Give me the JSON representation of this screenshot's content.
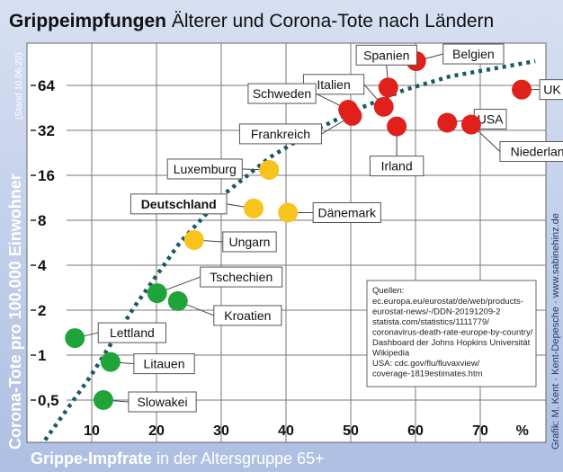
{
  "chart_data": {
    "type": "scatter",
    "title_bold": "Grippeimpfungen",
    "title_rest": " Älterer und Corona-Tote nach Ländern",
    "xlabel_bold": "Grippe-Impfrate",
    "xlabel_rest": " in der Altersgruppe 65+",
    "ylabel": "Corona-Tote pro 100.000 Einwohner",
    "ylabel_note": "(Stand 10.06.20)",
    "credit": "Grafik: M. Kent · Kent-Depesche · www.sabinehinz.de",
    "x_unit": "%",
    "xlim": [
      0,
      80
    ],
    "ylim": [
      0.27,
      123
    ],
    "y_scale": "log2",
    "x_ticks": [
      10,
      20,
      30,
      40,
      50,
      60,
      70
    ],
    "x_tick_labels": [
      "10",
      "20",
      "30",
      "40",
      "50",
      "60",
      "70"
    ],
    "y_ticks": [
      0.5,
      1,
      2,
      4,
      8,
      16,
      32,
      64
    ],
    "y_tick_labels": [
      "0,5",
      "1",
      "2",
      "4",
      "8",
      "16",
      "32",
      "64"
    ],
    "grid": true,
    "colors": {
      "red": "#e0201b",
      "yellow": "#f8c31c",
      "green": "#1fa43a",
      "trend": "#1a5868"
    },
    "points": [
      {
        "name": "Belgien",
        "x": 60.1,
        "y": 93,
        "color": "red"
      },
      {
        "name": "UK",
        "x": 76.4,
        "y": 60,
        "color": "red"
      },
      {
        "name": "Spanien",
        "x": 55.8,
        "y": 62,
        "color": "red"
      },
      {
        "name": "Italien",
        "x": 55.1,
        "y": 46,
        "color": "red"
      },
      {
        "name": "Schweden",
        "x": 49.6,
        "y": 44,
        "color": "red"
      },
      {
        "name": "Frankreich",
        "x": 50.2,
        "y": 40,
        "color": "red"
      },
      {
        "name": "Irland",
        "x": 57.1,
        "y": 34,
        "color": "red"
      },
      {
        "name": "USA",
        "x": 64.9,
        "y": 36,
        "color": "red"
      },
      {
        "name": "Niederlande",
        "x": 68.6,
        "y": 35,
        "color": "red"
      },
      {
        "name": "Luxemburg",
        "x": 37.4,
        "y": 17.4,
        "color": "yellow"
      },
      {
        "name": "Deutschland",
        "x": 35.0,
        "y": 9.6,
        "color": "yellow",
        "bold": true
      },
      {
        "name": "Dänemark",
        "x": 40.3,
        "y": 9.0,
        "color": "yellow"
      },
      {
        "name": "Ungarn",
        "x": 25.8,
        "y": 5.9,
        "color": "yellow"
      },
      {
        "name": "Tschechien",
        "x": 20.1,
        "y": 2.6,
        "color": "green"
      },
      {
        "name": "Kroatien",
        "x": 23.3,
        "y": 2.3,
        "color": "green"
      },
      {
        "name": "Lettland",
        "x": 7.4,
        "y": 1.3,
        "color": "green"
      },
      {
        "name": "Litauen",
        "x": 12.9,
        "y": 0.9,
        "color": "green"
      },
      {
        "name": "Slowakei",
        "x": 11.8,
        "y": 0.5,
        "color": "green"
      }
    ],
    "trendline": [
      [
        2.8,
        0.27
      ],
      [
        9.7,
        0.71
      ],
      [
        16.7,
        2.14
      ],
      [
        23.6,
        5.66
      ],
      [
        30.6,
        12.1
      ],
      [
        37.5,
        21.1
      ],
      [
        44.4,
        32
      ],
      [
        51.4,
        45
      ],
      [
        58.3,
        59.7
      ],
      [
        65.3,
        73.5
      ],
      [
        78.5,
        93
      ]
    ],
    "sources_title": "Quellen:",
    "sources": [
      "ec.europa.eu/eurostat/de/web/products-",
      "eurostat-news/-/DDN-20191209-2",
      "statista.com/statistics/1111779/",
      "coronavirus-death-rate-europe-by-country/",
      "Dashboard der Johns Hopkins Universität",
      "Wikipedia",
      "USA: cdc.gov/flu/fluvaxview/",
      "coverage-1819estimates.htm"
    ]
  }
}
